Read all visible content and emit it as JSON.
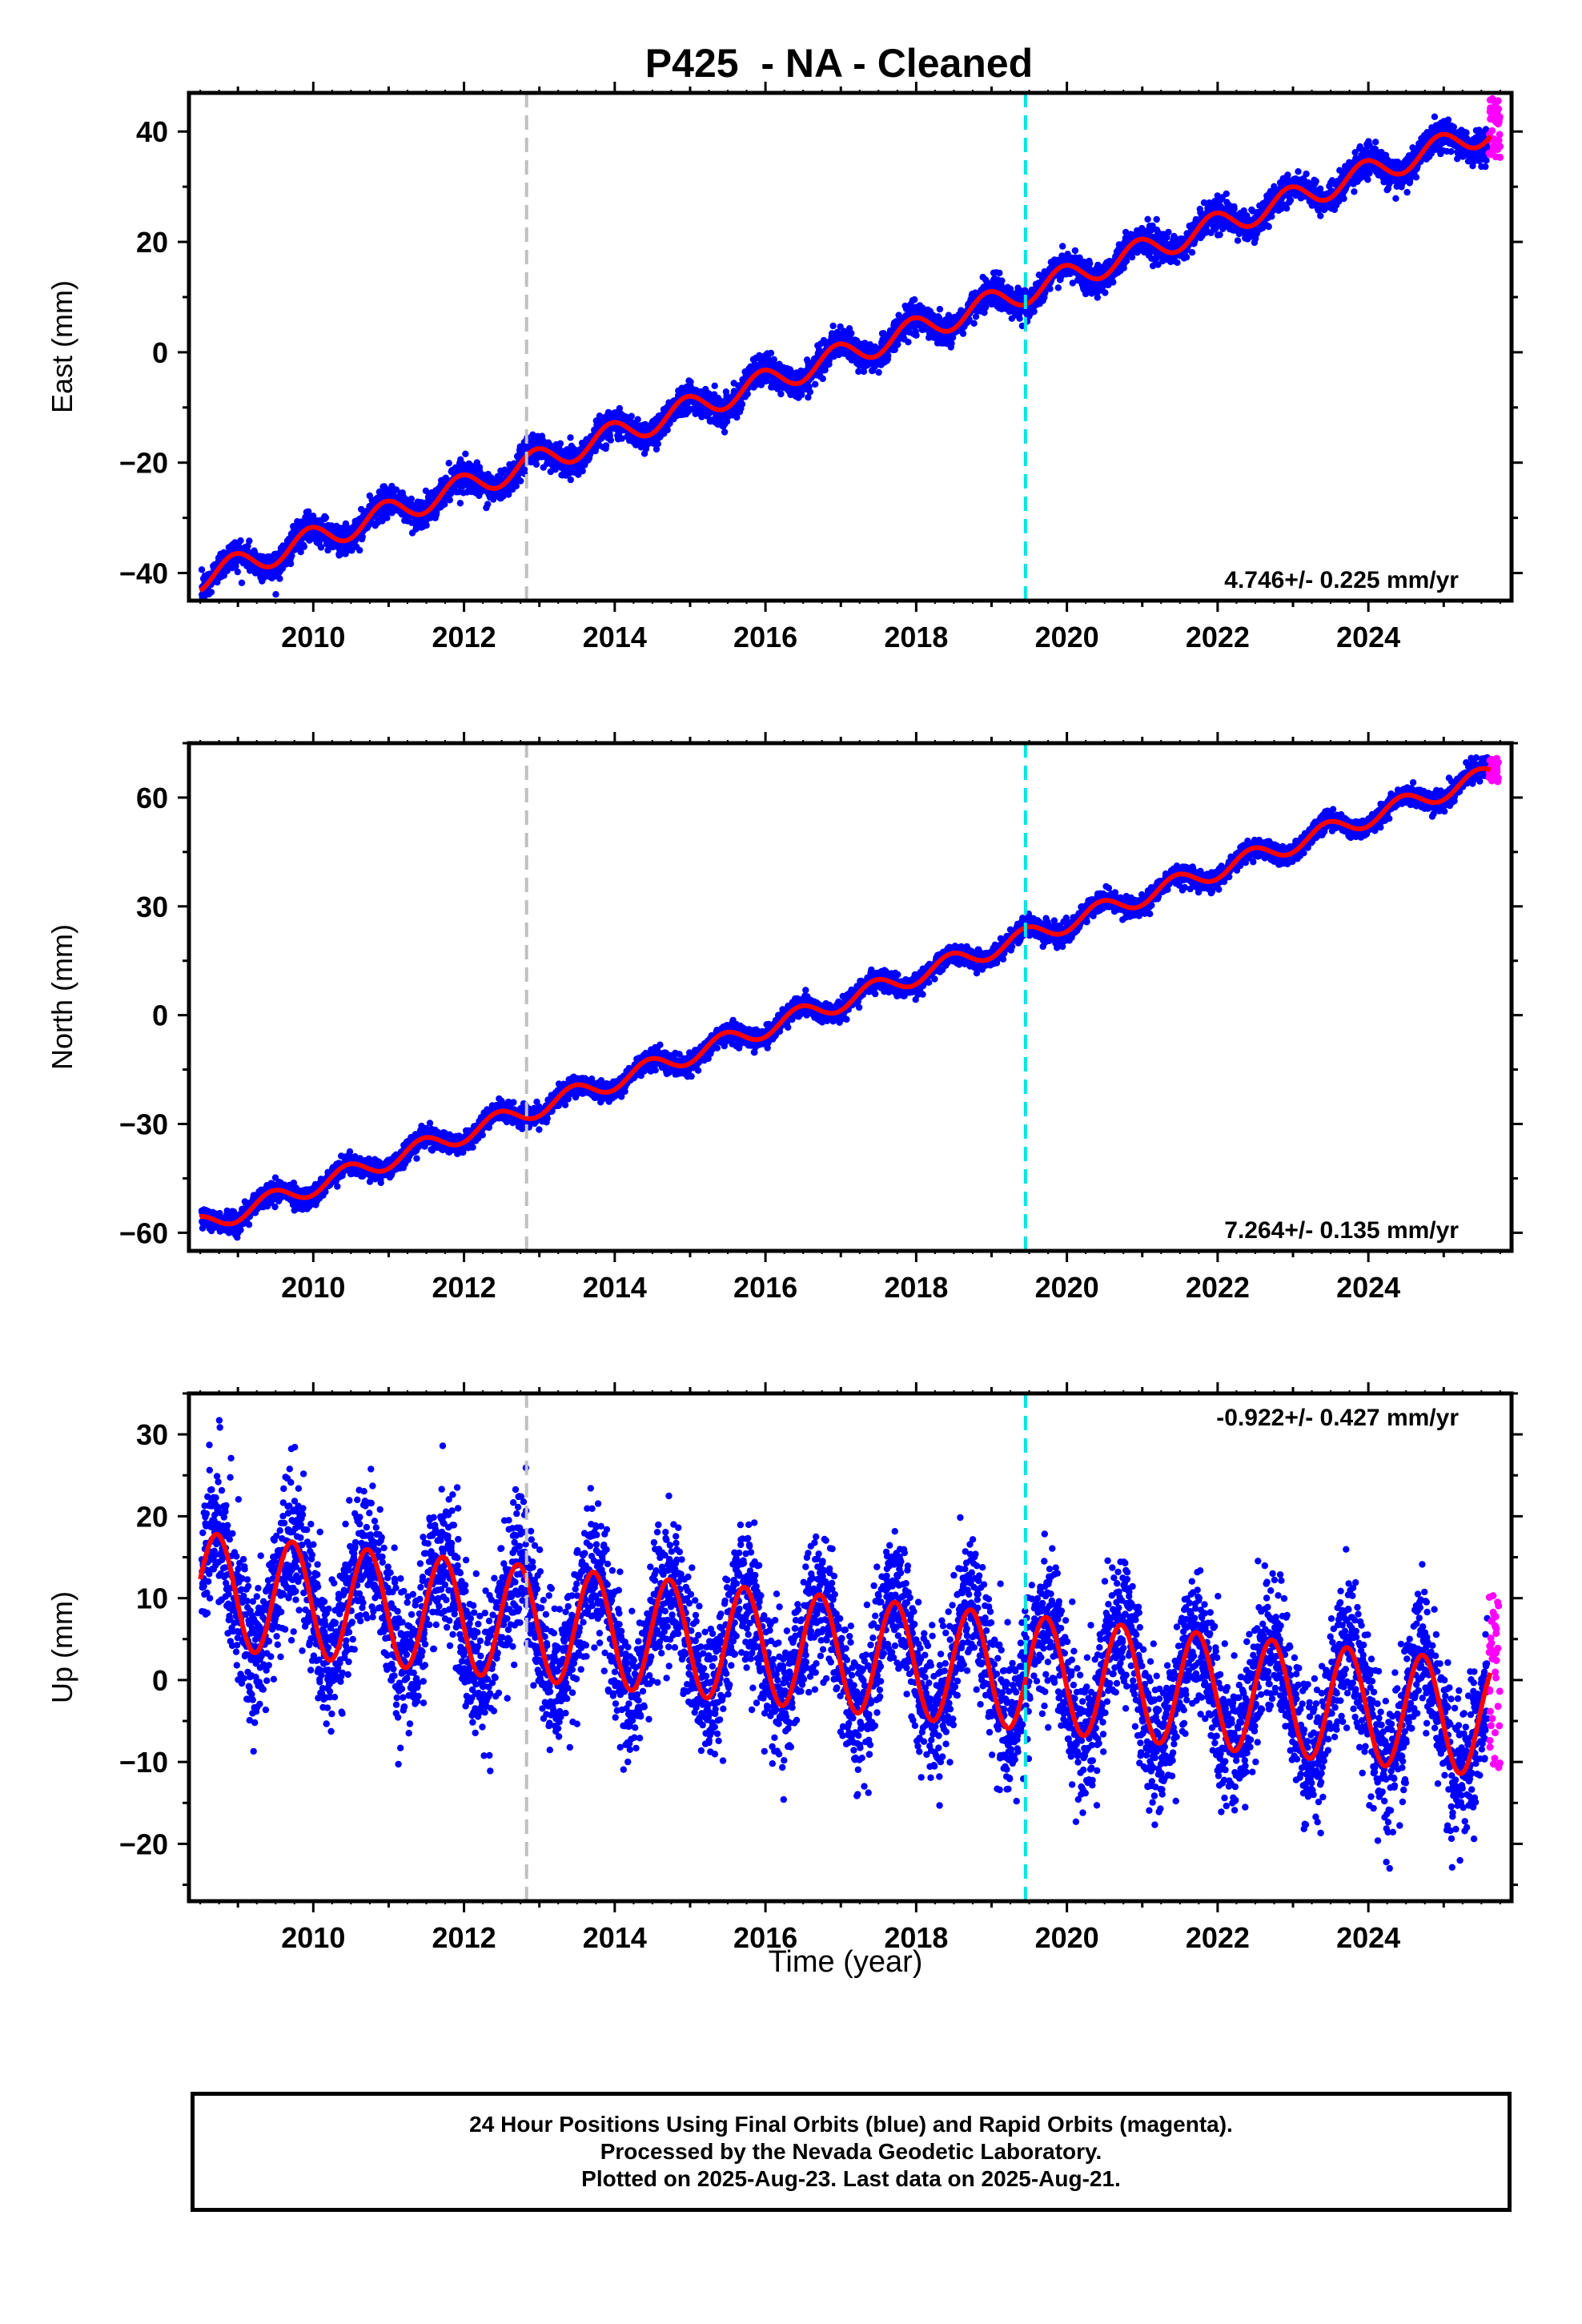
{
  "chart_data": {
    "type": "scatter",
    "title": "P425  - NA - Cleaned",
    "xlabel": "Time (year)",
    "xlim": [
      2008.35,
      2025.9
    ],
    "x_ticks": [
      2010,
      2012,
      2014,
      2016,
      2018,
      2020,
      2022,
      2024
    ],
    "vertical_lines": [
      {
        "x": 2012.83,
        "color": "#c0c0c0",
        "style": "dashed"
      },
      {
        "x": 2019.45,
        "color": "#00e5e5",
        "style": "dashed"
      }
    ],
    "series_colors": {
      "final": "#0000ff",
      "rapid": "#ff00ff",
      "model": "#ff0000"
    },
    "panels": [
      {
        "component": "East",
        "ylabel": "East (mm)",
        "ylim": [
          -45,
          47
        ],
        "yticks": [
          -40,
          -20,
          0,
          20,
          40
        ],
        "rate_text": "4.746+/- 0.225 mm/yr",
        "rate_position": "bottom-right",
        "model": {
          "start": 2008.5,
          "intercept": -41,
          "rate": 4.746,
          "amplitude": 2.3,
          "phase_peak": 0.95
        },
        "noise": 1.3,
        "rapid": {
          "x": [
            2025.6,
            2025.75
          ],
          "y": [
            35,
            46
          ]
        }
      },
      {
        "component": "North",
        "ylabel": "North (mm)",
        "ylim": [
          -65,
          75
        ],
        "yticks": [
          -60,
          -30,
          0,
          30,
          60
        ],
        "rate_text": "7.264+/- 0.135 mm/yr",
        "rate_position": "bottom-right",
        "model": {
          "start": 2008.5,
          "intercept": -58,
          "rate": 7.264,
          "amplitude": 2.6,
          "phase_peak": 0.45
        },
        "noise": 1.3,
        "rapid": {
          "x": [
            2025.6,
            2025.75
          ],
          "y": [
            64,
            71
          ]
        }
      },
      {
        "component": "Up",
        "ylabel": "Up (mm)",
        "ylim": [
          -27,
          35
        ],
        "yticks": [
          -20,
          -10,
          0,
          10,
          20,
          30
        ],
        "rate_text": "-0.922+/- 0.427 mm/yr",
        "rate_position": "top-right",
        "model": {
          "start": 2008.5,
          "intercept": 11,
          "rate": -0.922,
          "amplitude": 7,
          "phase_peak": 0.72
        },
        "noise": 4.2,
        "rapid": {
          "x": [
            2025.6,
            2025.75
          ],
          "y": [
            -12,
            11
          ]
        }
      }
    ]
  },
  "footer": {
    "line1": "24 Hour Positions Using Final Orbits (blue) and Rapid Orbits (magenta).",
    "line2": "Processed by the Nevada Geodetic Laboratory.",
    "line3": "Plotted on 2025-Aug-23. Last data on 2025-Aug-21."
  }
}
